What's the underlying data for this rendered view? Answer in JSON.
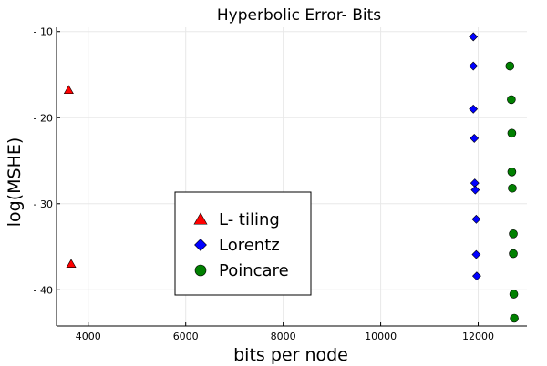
{
  "chart_data": {
    "type": "scatter",
    "title": "Hyperbolic Error- Bits",
    "xlabel": "bits per node",
    "ylabel": "log(MSHE)",
    "xlim": [
      3350,
      13000
    ],
    "ylim": [
      -44.2,
      -9.5
    ],
    "xticks": [
      4000,
      6000,
      8000,
      10000,
      12000
    ],
    "yticks": [
      -10,
      -20,
      -30,
      -40
    ],
    "ytick_labels": [
      "- 10",
      "- 20",
      "- 30",
      "- 40"
    ],
    "grid": true,
    "legend_position": "center",
    "series": [
      {
        "name": "L- tiling",
        "marker": "triangle",
        "color": "#ff0000",
        "points": [
          [
            3600,
            -16.8
          ],
          [
            3650,
            -37.0
          ]
        ]
      },
      {
        "name": "Lorentz",
        "marker": "diamond",
        "color": "#0000ff",
        "points": [
          [
            11900,
            -10.6
          ],
          [
            11900,
            -14.0
          ],
          [
            11900,
            -19.0
          ],
          [
            11920,
            -22.4
          ],
          [
            11930,
            -27.6
          ],
          [
            11940,
            -28.4
          ],
          [
            11960,
            -31.8
          ],
          [
            11960,
            -35.9
          ],
          [
            11970,
            -38.4
          ]
        ]
      },
      {
        "name": "Poincare",
        "marker": "circle",
        "color": "#008000",
        "points": [
          [
            12650,
            -14.0
          ],
          [
            12680,
            -17.9
          ],
          [
            12690,
            -21.8
          ],
          [
            12690,
            -26.3
          ],
          [
            12700,
            -28.2
          ],
          [
            12720,
            -33.5
          ],
          [
            12720,
            -35.8
          ],
          [
            12730,
            -40.5
          ],
          [
            12740,
            -43.3
          ]
        ]
      }
    ]
  }
}
